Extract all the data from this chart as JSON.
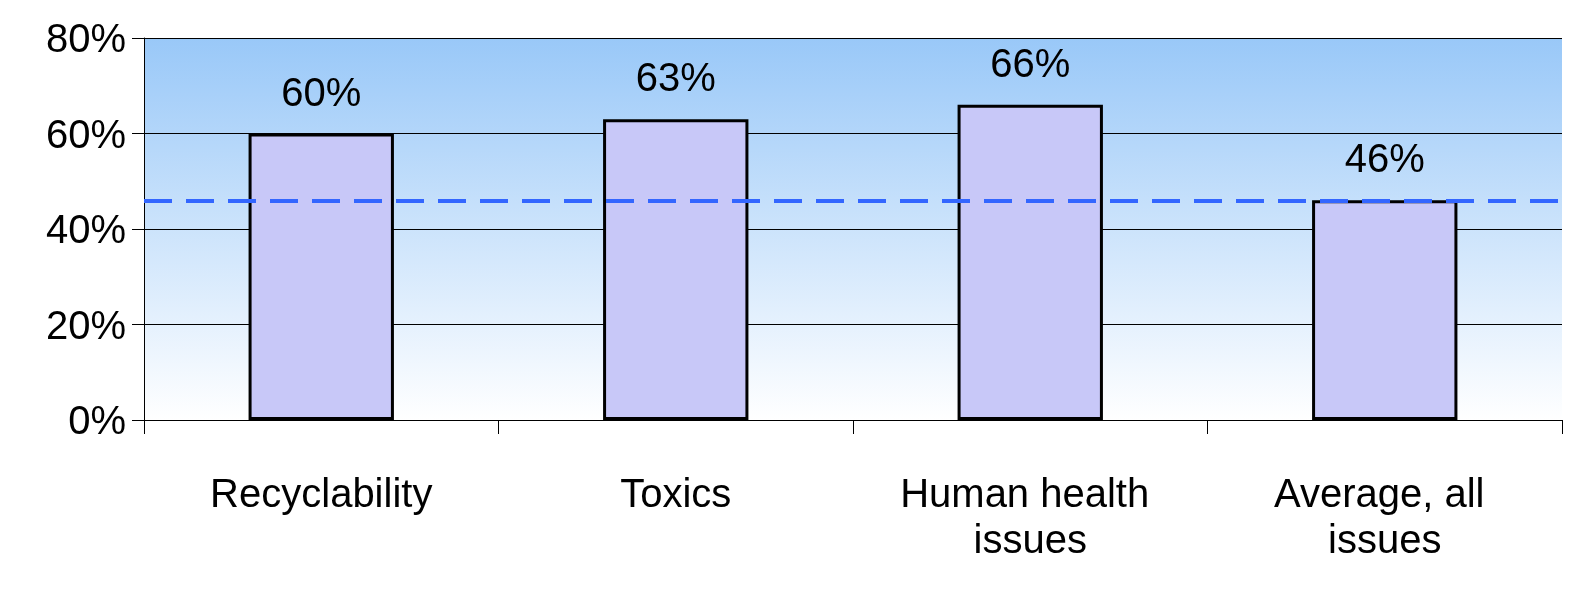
{
  "chart_data": {
    "type": "bar",
    "categories": [
      "Recyclability",
      "Toxics",
      "Human health issues",
      "Average, all issues"
    ],
    "values": [
      60,
      63,
      66,
      46
    ],
    "value_labels": [
      "60%",
      "63%",
      "66%",
      "46%"
    ],
    "color": "#c8c8f8",
    "ylim": [
      0,
      80
    ],
    "yticks": [
      {
        "value": 0,
        "label": "0%"
      },
      {
        "value": 20,
        "label": "20%"
      },
      {
        "value": 40,
        "label": "40%"
      },
      {
        "value": 60,
        "label": "60%"
      },
      {
        "value": 80,
        "label": "80%"
      }
    ],
    "grid": "y",
    "ref_lines": [
      {
        "axis": "y",
        "value": 46,
        "color": "#3366ff",
        "line_style": "dashed"
      }
    ]
  }
}
